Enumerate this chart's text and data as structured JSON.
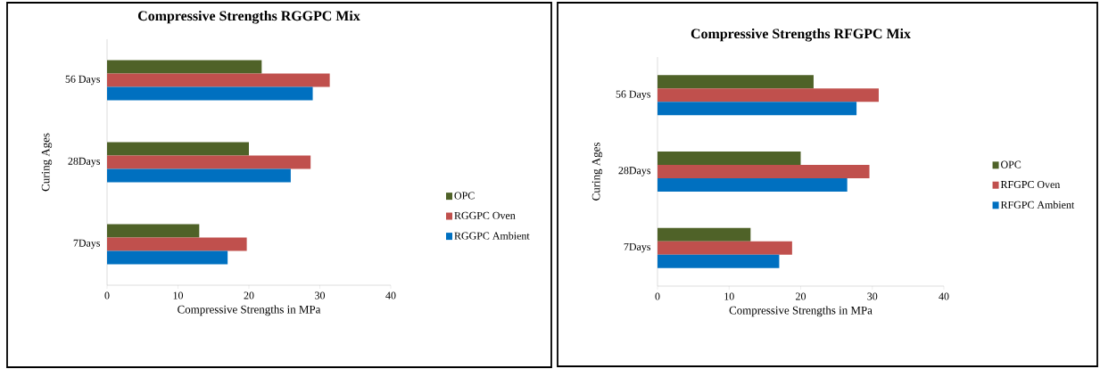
{
  "chart_data": [
    {
      "type": "bar",
      "orientation": "horizontal",
      "title": "Compressive Strengths RGGPC Mix",
      "xlabel": "Compressive Strengths in MPa",
      "ylabel": "Curing  Ages",
      "categories": [
        "56 Days",
        "28Days",
        "7Days"
      ],
      "xlim": [
        0,
        40
      ],
      "xticks": [
        0,
        10,
        20,
        30,
        40
      ],
      "legend": "right",
      "series": [
        {
          "name": "OPC",
          "color": "#4f6228",
          "values": [
            21.8,
            20.0,
            13.0
          ]
        },
        {
          "name": "RGGPC Oven",
          "color": "#c0504d",
          "values": [
            31.4,
            28.7,
            19.7
          ]
        },
        {
          "name": "RGGPC Ambient",
          "color": "#0070c0",
          "values": [
            29.0,
            25.9,
            17.0
          ]
        }
      ]
    },
    {
      "type": "bar",
      "orientation": "horizontal",
      "title": "Compressive Strengths RFGPC Mix",
      "xlabel": "Compressive Strengths in MPa",
      "ylabel": "Curing  Ages",
      "categories": [
        "56 Days",
        "28Days",
        "7Days"
      ],
      "xlim": [
        0,
        40
      ],
      "xticks": [
        0,
        10,
        20,
        30,
        40
      ],
      "legend": "right",
      "series": [
        {
          "name": "OPC",
          "color": "#4f6228",
          "values": [
            21.8,
            20.0,
            13.0
          ]
        },
        {
          "name": "RFGPC Oven",
          "color": "#c0504d",
          "values": [
            30.9,
            29.6,
            18.8
          ]
        },
        {
          "name": "RFGPC Ambient",
          "color": "#0070c0",
          "values": [
            27.8,
            26.5,
            17.0
          ]
        }
      ]
    }
  ]
}
